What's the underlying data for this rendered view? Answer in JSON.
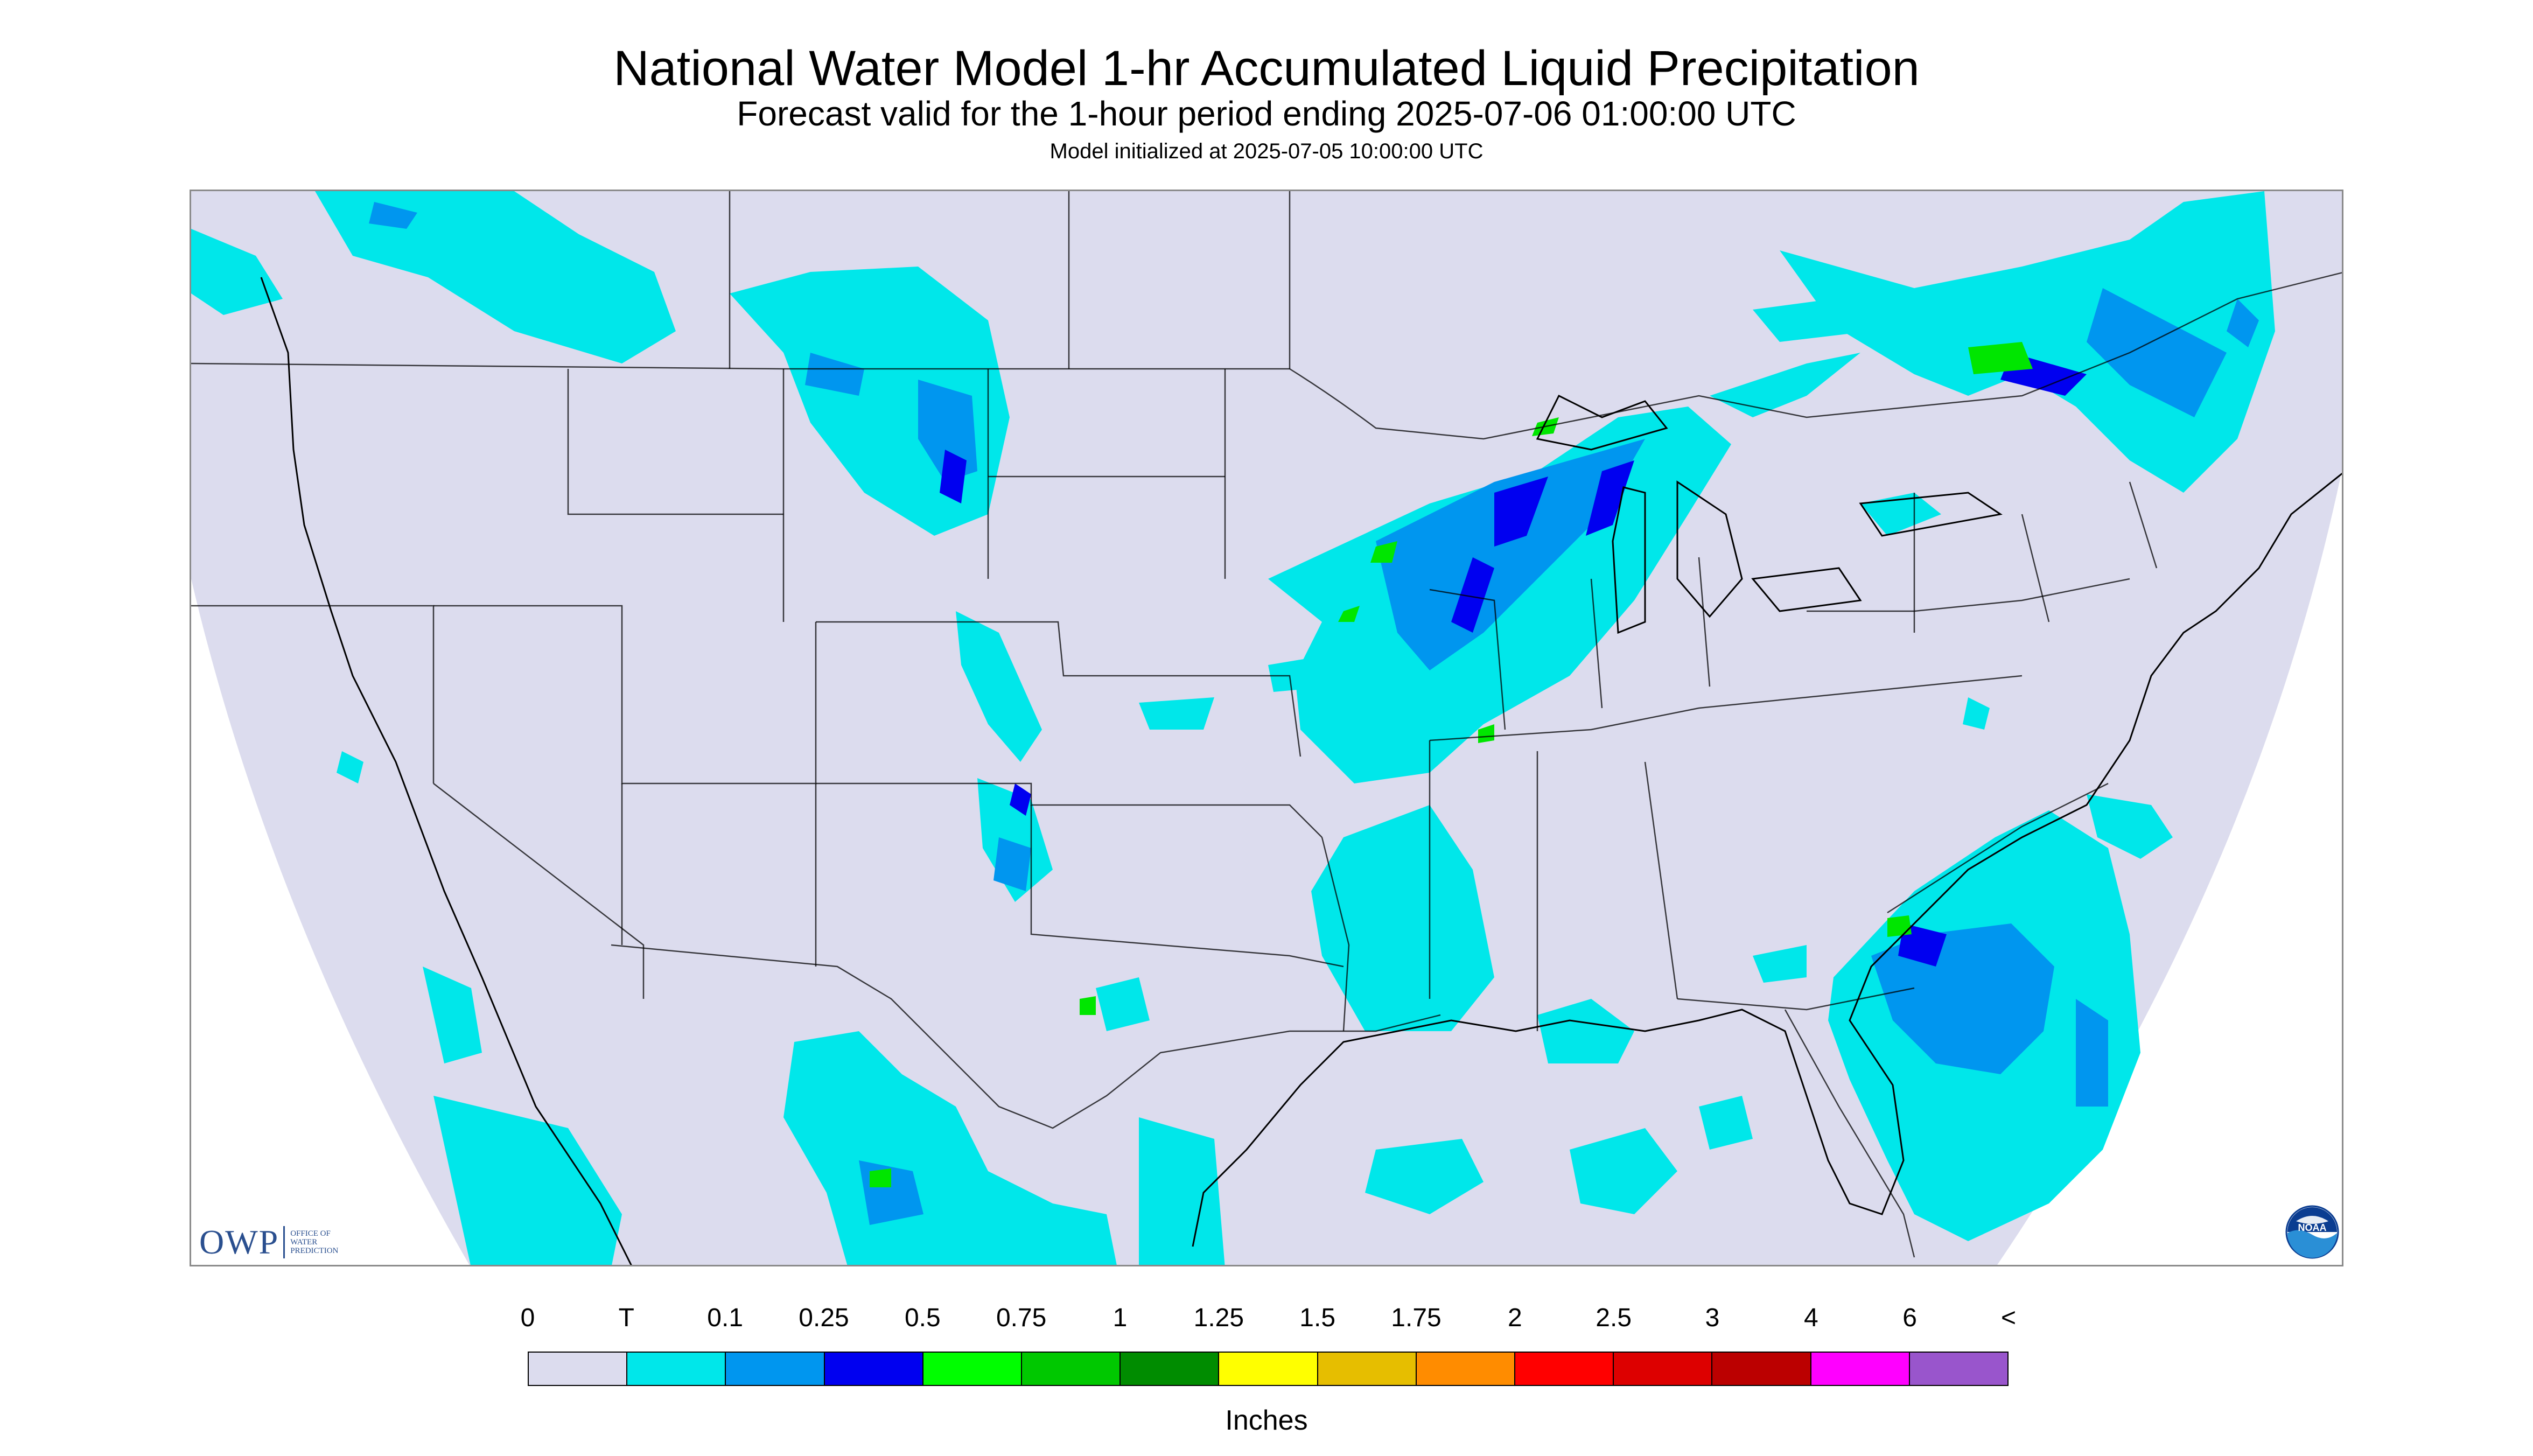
{
  "title": "National Water Model 1-hr Accumulated Liquid Precipitation",
  "subtitle": "Forecast valid for the 1-hour period ending 2025-07-06 01:00:00 UTC",
  "init": "Model initialized at 2025-07-05 10:00:00 UTC",
  "map": {
    "region": "Continental United States",
    "background_color": "#dcdcee",
    "boundary_color": "#000000",
    "precip_colors": {
      "trace": "#00e7ea",
      "light": "#0096ef",
      "moderate": "#0000f0",
      "heavy": "#00e600",
      "very_heavy": "#00aa00"
    }
  },
  "logos": {
    "owp": {
      "text": "OWP",
      "sub_lines": [
        "OFFICE OF",
        "WATER",
        "PREDICTION"
      ]
    },
    "noaa": {
      "text": "NOAA",
      "icon": "noaa-logo-icon"
    }
  },
  "legend": {
    "tick_labels": [
      "0",
      "T",
      "0.1",
      "0.25",
      "0.5",
      "0.75",
      "1",
      "1.25",
      "1.5",
      "1.75",
      "2",
      "2.5",
      "3",
      "4",
      "6",
      "<"
    ],
    "colors": [
      "#dcdcee",
      "#00e7ea",
      "#0096ef",
      "#0000f0",
      "#00fe00",
      "#00c800",
      "#008c00",
      "#ffff00",
      "#e6be00",
      "#ff8c00",
      "#ff0000",
      "#dd0000",
      "#bb0000",
      "#ff00ff",
      "#9955cc"
    ],
    "units": "Inches"
  }
}
